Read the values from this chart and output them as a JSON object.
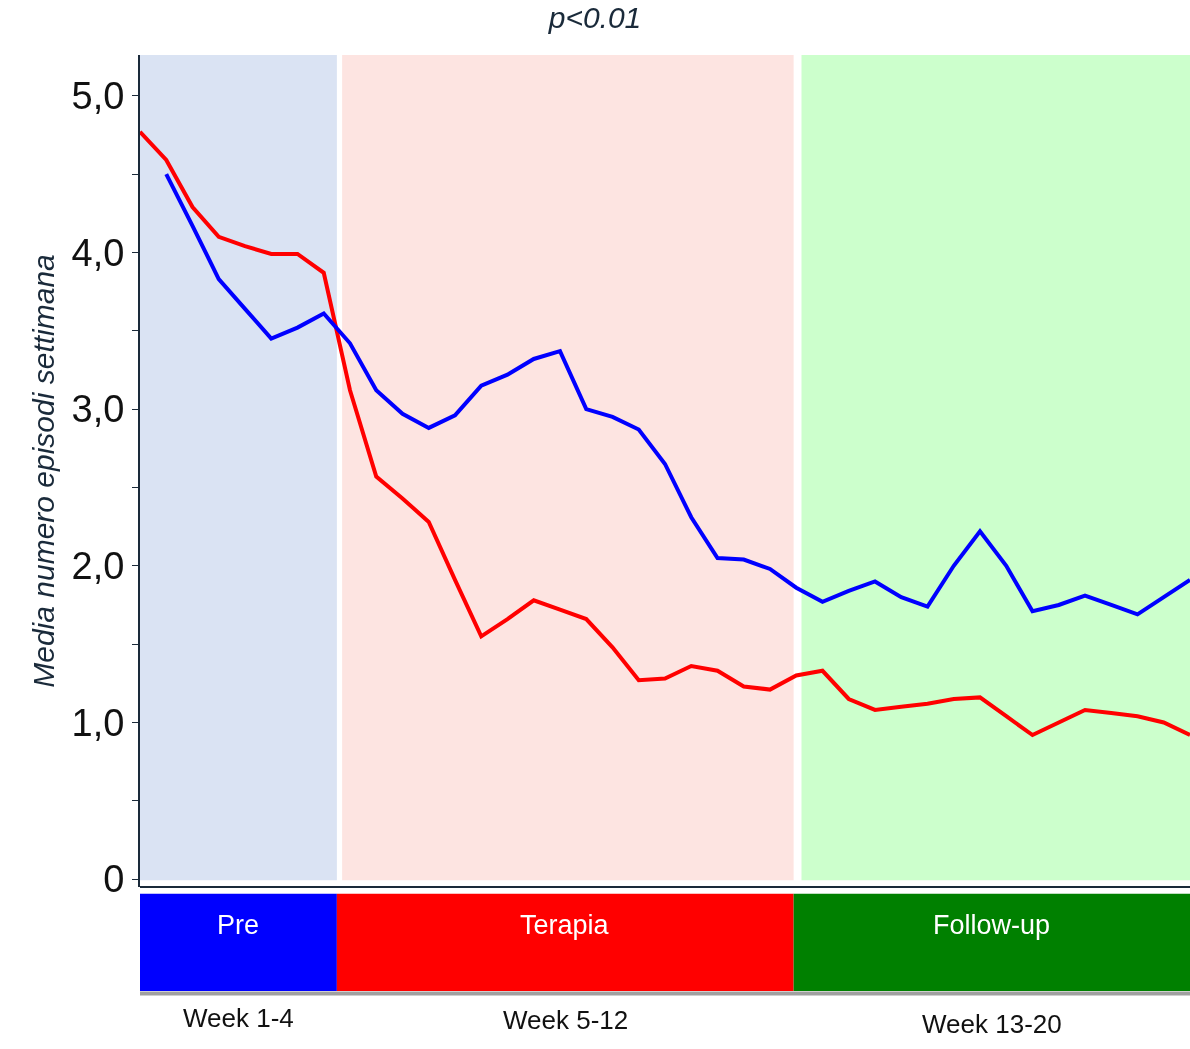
{
  "chart_data": {
    "type": "line",
    "title": "p<0.01",
    "ylabel": "Media numero episodi settimana",
    "categories": [
      null,
      null,
      null,
      null,
      null,
      null,
      null,
      null,
      null,
      null,
      null,
      null,
      null,
      null,
      null,
      null,
      null,
      null,
      null,
      null,
      null,
      null,
      null,
      null,
      null,
      null,
      null,
      null,
      null,
      null,
      null,
      null,
      null,
      null,
      null,
      null,
      null,
      null,
      null,
      null,
      null
    ],
    "ylim": [
      -0.05,
      5.26
    ],
    "yticks": [
      {
        "value": 0,
        "label": "0"
      },
      {
        "value": 0.5,
        "label": null
      },
      {
        "value": 1,
        "label": "1,0"
      },
      {
        "value": 1.5,
        "label": null
      },
      {
        "value": 2,
        "label": "2,0"
      },
      {
        "value": 2.5,
        "label": null
      },
      {
        "value": 3,
        "label": "3,0"
      },
      {
        "value": 3.5,
        "label": null
      },
      {
        "value": 4,
        "label": "4,0"
      },
      {
        "value": 4.5,
        "label": null
      },
      {
        "value": 5,
        "label": "5,0"
      }
    ],
    "tick_labels": "y",
    "grid": false,
    "marker": "none",
    "line_style": "solid",
    "series": [
      {
        "color": "#ff0000",
        "values": [
          4.77,
          4.59,
          4.29,
          4.1,
          4.04,
          3.99,
          3.99,
          3.87,
          3.12,
          2.57,
          2.43,
          2.28,
          1.91,
          1.55,
          1.66,
          1.78,
          1.72,
          1.66,
          1.48,
          1.27,
          1.28,
          1.36,
          1.33,
          1.23,
          1.21,
          1.3,
          1.33,
          1.15,
          1.08,
          1.1,
          1.12,
          1.15,
          1.16,
          1.04,
          0.92,
          1.0,
          1.08,
          1.06,
          1.04,
          1.0,
          0.92
        ]
      },
      {
        "color": "#0000ff",
        "values": [
          null,
          4.5,
          4.17,
          3.83,
          3.64,
          3.45,
          3.52,
          3.61,
          3.42,
          3.12,
          2.97,
          2.88,
          2.96,
          3.15,
          3.22,
          3.32,
          3.37,
          3.0,
          2.95,
          2.87,
          2.65,
          2.31,
          2.05,
          2.04,
          1.98,
          1.86,
          1.77,
          1.84,
          1.9,
          1.8,
          1.74,
          2.0,
          2.22,
          2.0,
          1.71,
          1.75,
          1.81,
          1.75,
          1.69,
          1.8,
          1.91
        ]
      }
    ],
    "annotations": [
      "Pre",
      "Terapia",
      "Follow-up",
      "Week 1-4",
      "Week 5-12",
      "Week 13-20"
    ]
  }
}
